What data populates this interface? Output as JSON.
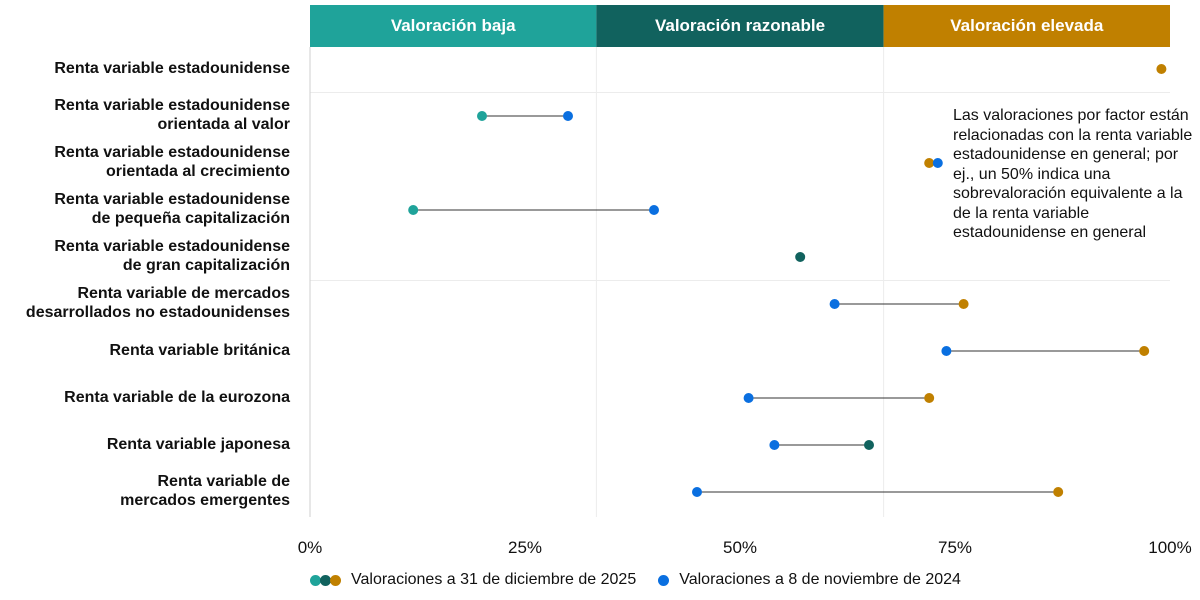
{
  "chart_data": {
    "type": "dumbbell",
    "xlim": [
      0,
      100
    ],
    "x_ticks": [
      "0%",
      "25%",
      "50%",
      "75%",
      "100%"
    ],
    "x_tick_values": [
      0,
      25,
      50,
      75,
      100
    ],
    "zones": [
      {
        "label": "Valoración baja",
        "from": 0,
        "to": 33.3,
        "color": "#1fa39a"
      },
      {
        "label": "Valoración razonable",
        "from": 33.3,
        "to": 66.7,
        "color": "#11625e"
      },
      {
        "label": "Valoración elevada",
        "from": 66.7,
        "to": 100,
        "color": "#c08000"
      }
    ],
    "categories": [
      [
        "Renta variable estadounidense"
      ],
      [
        "Renta variable estadounidense",
        "orientada al valor"
      ],
      [
        "Renta variable estadounidense",
        "orientada al crecimiento"
      ],
      [
        "Renta variable estadounidense",
        "de pequeña capitalización"
      ],
      [
        "Renta variable estadounidense",
        "de gran capitalización"
      ],
      [
        "Renta variable de mercados",
        "desarrollados no estadounidenses"
      ],
      [
        "Renta variable británica"
      ],
      [
        "Renta variable de la eurozona"
      ],
      [
        "Renta variable japonesa"
      ],
      [
        "Renta variable de",
        "mercados emergentes"
      ]
    ],
    "series": [
      {
        "name": "Valoraciones a 31 de diciembre de 2025",
        "values": [
          99,
          20,
          72,
          12,
          57,
          76,
          97,
          72,
          65,
          87
        ]
      },
      {
        "name": "Valoraciones a 8 de noviembre de 2024",
        "values": [
          null,
          30,
          73,
          40,
          null,
          61,
          74,
          51,
          54,
          45
        ],
        "color": "#0a6fe0"
      }
    ],
    "annotation": "Las valoraciones por factor están relacionadas con la renta variable estadounidense en general; por ej., un 50% indica una sobrevaloración equivalente a la de la renta variable estadounidense en general",
    "legend_placement": "bottom"
  }
}
